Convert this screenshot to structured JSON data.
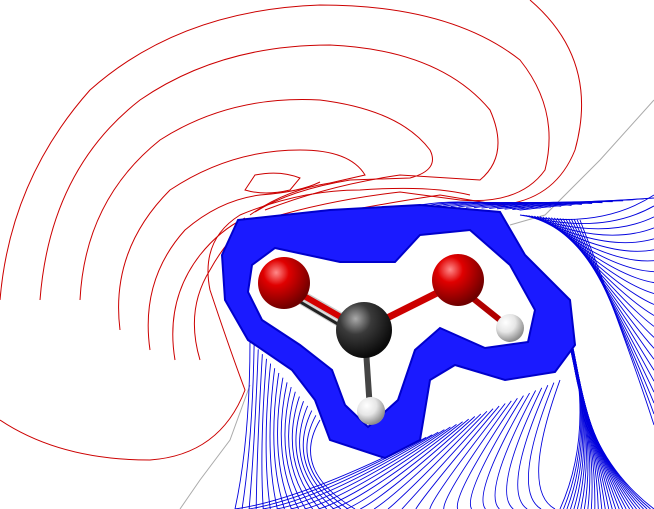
{
  "colors": {
    "background": "#ffffff",
    "negative_contour": "#cc0000",
    "positive_contour": "#0000dd",
    "zero_contour": "#aaaaaa",
    "oxygen": "#d40000",
    "carbon": "#333333",
    "hydrogen": "#dddddd"
  },
  "molecule": {
    "atoms": [
      "O",
      "C",
      "O",
      "H",
      "H"
    ],
    "bonds": [
      [
        "C",
        "O",
        "double"
      ],
      [
        "C",
        "O",
        "single"
      ],
      [
        "C",
        "H",
        "single"
      ],
      [
        "O",
        "H",
        "single"
      ]
    ]
  }
}
